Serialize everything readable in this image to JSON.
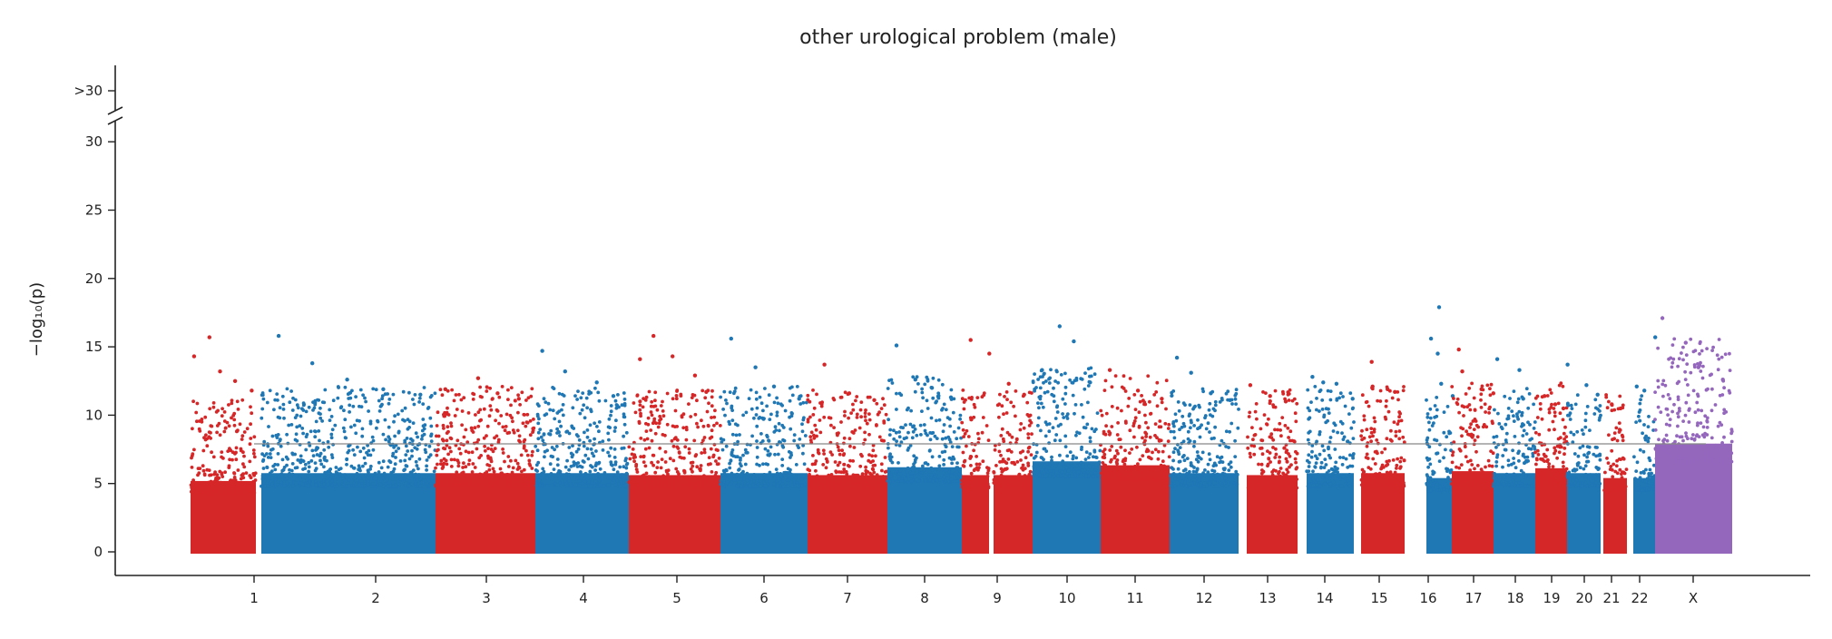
{
  "chart_data": {
    "type": "scatter",
    "title": "other urological problem (male)",
    "xlabel": "",
    "ylabel": "−log₁₀(p)",
    "ylim": [
      0,
      32
    ],
    "yticks": [
      "0",
      "5",
      "10",
      "15",
      "20",
      "25",
      "30"
    ],
    "ytick_break_label": ">30",
    "axis_break": true,
    "significance_line": 7.9,
    "colors": {
      "odd": "#d62728",
      "even": "#1f77b4",
      "X": "#9467bd",
      "threshold": "#888888"
    },
    "chromosomes": [
      {
        "label": "1",
        "color": "odd",
        "base_max": 7.2,
        "top_hits": [
          14.3,
          15.7,
          13.2,
          12.5,
          11.8
        ]
      },
      {
        "label": "2",
        "color": "even",
        "base_max": 8.0,
        "top_hits": [
          15.8,
          13.8,
          12.6,
          11.9,
          11.5
        ]
      },
      {
        "label": "3",
        "color": "odd",
        "base_max": 8.0,
        "top_hits": [
          11.9,
          12.7,
          11.6,
          11.2
        ]
      },
      {
        "label": "4",
        "color": "even",
        "base_max": 8.0,
        "top_hits": [
          14.7,
          13.2,
          12.4,
          11.4
        ]
      },
      {
        "label": "5",
        "color": "odd",
        "base_max": 7.8,
        "top_hits": [
          14.1,
          15.8,
          14.3,
          12.9,
          11.7
        ]
      },
      {
        "label": "6",
        "color": "even",
        "base_max": 8.0,
        "top_hits": [
          15.6,
          13.5,
          12.1,
          11.2
        ]
      },
      {
        "label": "7",
        "color": "odd",
        "base_max": 7.8,
        "top_hits": [
          13.7,
          11.6,
          11.1
        ]
      },
      {
        "label": "8",
        "color": "even",
        "base_max": 8.6,
        "top_hits": [
          15.1,
          12.6,
          12.0,
          11.3
        ]
      },
      {
        "label": "9",
        "color": "odd",
        "base_max": 7.8,
        "top_hits": [
          15.5,
          14.5,
          12.3,
          11.5
        ]
      },
      {
        "label": "10",
        "color": "even",
        "base_max": 9.2,
        "top_hits": [
          13.3,
          16.5,
          15.4,
          12.4
        ]
      },
      {
        "label": "11",
        "color": "odd",
        "base_max": 8.8,
        "top_hits": [
          13.3,
          11.8,
          11.2
        ]
      },
      {
        "label": "12",
        "color": "even",
        "base_max": 8.0,
        "top_hits": [
          14.2,
          13.1,
          11.6,
          11.1
        ]
      },
      {
        "label": "13",
        "color": "odd",
        "base_max": 7.8,
        "top_hits": [
          12.2,
          11.4,
          11.0
        ]
      },
      {
        "label": "14",
        "color": "even",
        "base_max": 8.0,
        "top_hits": [
          12.8,
          12.4,
          12.3,
          11.2
        ]
      },
      {
        "label": "15",
        "color": "odd",
        "base_max": 8.0,
        "top_hits": [
          13.9,
          12.1,
          11.9,
          11.7
        ]
      },
      {
        "label": "16",
        "color": "even",
        "base_max": 7.5,
        "top_hits": [
          15.6,
          14.5,
          12.3,
          11.4
        ]
      },
      {
        "label": "17",
        "color": "odd",
        "base_max": 8.2,
        "top_hits": [
          14.8,
          13.2,
          11.9,
          11.6
        ]
      },
      {
        "label": "18",
        "color": "even",
        "base_max": 8.0,
        "top_hits": [
          14.1,
          13.3,
          11.2
        ]
      },
      {
        "label": "19",
        "color": "odd",
        "base_max": 8.5,
        "top_hits": [
          11.4,
          10.8,
          10.5
        ]
      },
      {
        "label": "20",
        "color": "even",
        "base_max": 8.0,
        "top_hits": [
          13.7,
          12.2,
          11.5
        ]
      },
      {
        "label": "21",
        "color": "odd",
        "base_max": 7.5,
        "top_hits": [
          10.8,
          10.5
        ]
      },
      {
        "label": "22",
        "color": "even",
        "base_max": 7.5,
        "top_hits": [
          12.1,
          11.8,
          15.7
        ]
      },
      {
        "label": "X",
        "color": "X",
        "base_max": 11.0,
        "top_hits": [
          17.1,
          15.3,
          13.5,
          12.6
        ]
      }
    ],
    "extra_hits": [
      {
        "chromosome": "16",
        "value": 17.9
      }
    ]
  }
}
